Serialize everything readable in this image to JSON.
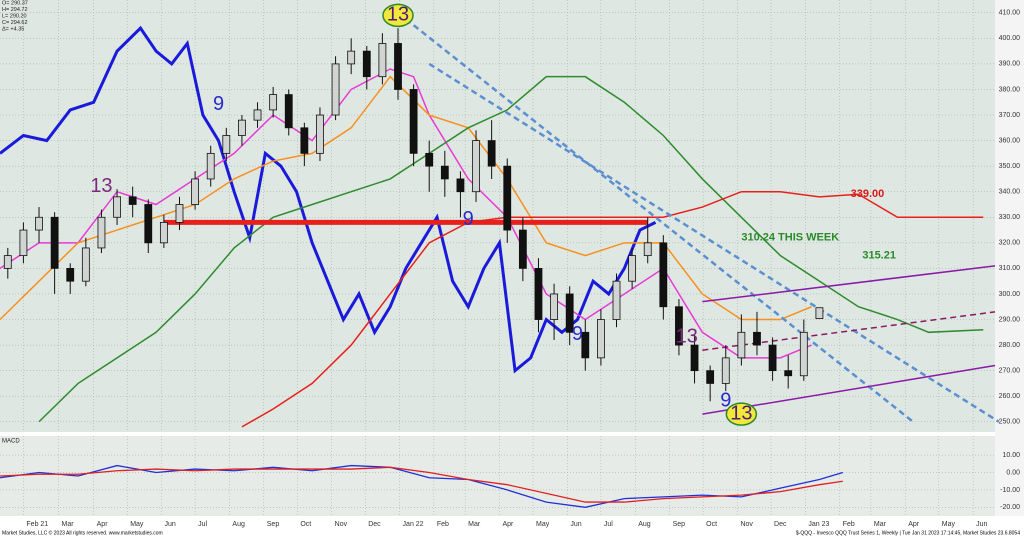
{
  "chart_data": [
    {
      "type": "candlestick",
      "info": [
        "O= 290.37",
        "H= 294.72",
        "L= 290.20",
        "C= 294.62",
        "Δ= +4.35"
      ],
      "x": [
        1,
        3,
        5,
        7,
        9,
        11,
        13,
        15,
        17,
        19,
        21,
        23,
        25,
        27,
        29,
        31,
        33,
        35,
        37,
        39,
        41,
        43,
        45,
        47,
        49,
        51,
        53,
        55,
        57,
        59,
        61,
        63,
        65,
        67,
        69,
        71,
        73,
        75,
        77,
        79,
        81,
        83,
        85,
        87,
        89,
        91,
        93,
        95,
        97,
        99,
        101,
        103,
        105
      ],
      "open": [
        310,
        315,
        325,
        330,
        310,
        305,
        318,
        330,
        338,
        335,
        320,
        328,
        335,
        345,
        355,
        362,
        368,
        372,
        378,
        365,
        355,
        370,
        390,
        395,
        385,
        398,
        380,
        355,
        350,
        345,
        340,
        360,
        350,
        325,
        310,
        290,
        300,
        285,
        275,
        290,
        305,
        315,
        320,
        295,
        280,
        270,
        265,
        275,
        285,
        280,
        270,
        268,
        290.37
      ],
      "high": [
        318,
        328,
        334,
        332,
        312,
        322,
        333,
        341,
        342,
        337,
        331,
        338,
        348,
        358,
        365,
        370,
        375,
        381,
        380,
        367,
        373,
        393,
        400,
        397,
        402,
        404,
        382,
        360,
        356,
        348,
        364,
        368,
        353,
        330,
        314,
        304,
        303,
        290,
        294,
        308,
        318,
        330,
        323,
        298,
        284,
        272,
        280,
        292,
        293,
        283,
        276,
        290,
        294.72
      ],
      "low": [
        306,
        312,
        320,
        300,
        300,
        303,
        316,
        327,
        330,
        316,
        318,
        325,
        333,
        342,
        352,
        358,
        365,
        369,
        362,
        350,
        352,
        368,
        386,
        380,
        382,
        376,
        350,
        340,
        338,
        330,
        336,
        345,
        320,
        305,
        285,
        282,
        280,
        270,
        272,
        287,
        302,
        312,
        290,
        276,
        265,
        258,
        262,
        272,
        276,
        266,
        263,
        266,
        290.2
      ],
      "close": [
        315,
        325,
        330,
        310,
        305,
        318,
        330,
        338,
        335,
        320,
        328,
        335,
        345,
        355,
        362,
        368,
        372,
        378,
        365,
        355,
        370,
        390,
        395,
        385,
        398,
        380,
        355,
        350,
        345,
        340,
        360,
        350,
        325,
        310,
        290,
        300,
        285,
        275,
        290,
        305,
        315,
        320,
        295,
        280,
        270,
        265,
        275,
        285,
        280,
        270,
        268,
        285,
        294.62
      ],
      "up_color": "#d0d4d2",
      "down_color": "#111111",
      "xlim": [
        0,
        127.5
      ],
      "xticks": [
        {
          "value": 3,
          "label": "Feb 21"
        },
        {
          "value": 7.5,
          "label": "Mar"
        },
        {
          "value": 12,
          "label": "Apr"
        },
        {
          "value": 16.3,
          "label": "May"
        },
        {
          "value": 20.7,
          "label": "Jun"
        },
        {
          "value": 25,
          "label": "Jul"
        },
        {
          "value": 29.4,
          "label": "Aug"
        },
        {
          "value": 33.8,
          "label": "Sep"
        },
        {
          "value": 38.1,
          "label": "Oct"
        },
        {
          "value": 42.5,
          "label": "Nov"
        },
        {
          "value": 46.8,
          "label": "Dec"
        },
        {
          "value": 51.2,
          "label": "Jan 22"
        },
        {
          "value": 55.6,
          "label": "Feb"
        },
        {
          "value": 59.6,
          "label": "Mar"
        },
        {
          "value": 64,
          "label": "Apr"
        },
        {
          "value": 68.3,
          "label": "May"
        },
        {
          "value": 72.7,
          "label": "Jun"
        },
        {
          "value": 77,
          "label": "Jul"
        },
        {
          "value": 81.4,
          "label": "Aug"
        },
        {
          "value": 85.8,
          "label": "Sep"
        },
        {
          "value": 90.1,
          "label": "Oct"
        },
        {
          "value": 94.5,
          "label": "Nov"
        },
        {
          "value": 98.8,
          "label": "Dec"
        },
        {
          "value": 103.2,
          "label": "Jan 23"
        },
        {
          "value": 107.6,
          "label": "Feb"
        },
        {
          "value": 111.6,
          "label": "Mar"
        },
        {
          "value": 116,
          "label": "Apr"
        },
        {
          "value": 120.3,
          "label": "May"
        },
        {
          "value": 124.7,
          "label": "Jun"
        }
      ],
      "ylim": [
        246,
        415
      ],
      "yticks": [
        {
          "value": 250,
          "label": "250.00"
        },
        {
          "value": 260,
          "label": "260.00"
        },
        {
          "value": 270,
          "label": "270.00"
        },
        {
          "value": 280,
          "label": "280.00"
        },
        {
          "value": 290,
          "label": "290.00"
        },
        {
          "value": 300,
          "label": "300.00"
        },
        {
          "value": 310,
          "label": "310.00"
        },
        {
          "value": 320,
          "label": "320.00"
        },
        {
          "value": 330,
          "label": "330.00"
        },
        {
          "value": 340,
          "label": "340.00"
        },
        {
          "value": 350,
          "label": "350.00"
        },
        {
          "value": 360,
          "label": "360.00"
        },
        {
          "value": 370,
          "label": "370.00"
        },
        {
          "value": 380,
          "label": "380.00"
        },
        {
          "value": 390,
          "label": "390.00"
        },
        {
          "value": 400,
          "label": "400.00"
        },
        {
          "value": 410,
          "label": "410.00"
        }
      ],
      "grid": true,
      "lines": [
        {
          "color": "#1a1adb",
          "width": 3,
          "x": [
            0,
            3,
            6,
            9,
            12,
            15,
            18,
            20,
            22,
            24,
            26,
            28,
            30,
            32,
            34,
            36,
            38,
            40,
            42,
            44,
            46,
            48,
            50,
            52,
            54,
            56,
            58,
            60,
            62,
            64,
            66,
            68,
            70,
            72,
            74,
            76,
            78,
            80,
            82,
            84
          ],
          "values": [
            355,
            362,
            360,
            372,
            375,
            395,
            404,
            395,
            390,
            398,
            370,
            360,
            340,
            322,
            355,
            350,
            340,
            320,
            305,
            290,
            300,
            285,
            295,
            310,
            320,
            330,
            305,
            295,
            310,
            320,
            270,
            275,
            290,
            285,
            290,
            305,
            300,
            310,
            325,
            328
          ]
        },
        {
          "color": "#e83ad6",
          "width": 1.5,
          "x": [
            0,
            5,
            10,
            15,
            20,
            25,
            30,
            35,
            40,
            45,
            50,
            53,
            55,
            60,
            65,
            70,
            75,
            80,
            85,
            90,
            95,
            100,
            104
          ],
          "values": [
            310,
            320,
            320,
            340,
            335,
            345,
            355,
            370,
            360,
            380,
            388,
            385,
            370,
            345,
            330,
            300,
            290,
            300,
            310,
            285,
            275,
            275,
            280
          ]
        },
        {
          "color": "#f7901e",
          "width": 1.5,
          "x": [
            0,
            5,
            10,
            15,
            20,
            25,
            30,
            35,
            40,
            45,
            50,
            55,
            60,
            65,
            70,
            75,
            80,
            85,
            90,
            95,
            100,
            104
          ],
          "values": [
            290,
            305,
            320,
            325,
            330,
            335,
            345,
            352,
            355,
            365,
            385,
            370,
            365,
            345,
            320,
            315,
            320,
            320,
            300,
            290,
            290,
            295
          ]
        },
        {
          "color": "#2e8b2e",
          "width": 1.5,
          "x": [
            5,
            10,
            15,
            20,
            25,
            30,
            35,
            40,
            45,
            50,
            55,
            60,
            65,
            70,
            75,
            80,
            85,
            90,
            95,
            100,
            105,
            110,
            115,
            119,
            126
          ],
          "values": [
            250,
            265,
            275,
            285,
            300,
            318,
            330,
            335,
            340,
            345,
            355,
            365,
            372,
            385,
            385,
            375,
            362,
            345,
            330,
            315,
            305,
            295,
            290,
            285,
            286
          ]
        },
        {
          "color": "#e8201c",
          "width": 1.5,
          "x": [
            31,
            35,
            40,
            45,
            50,
            55,
            60,
            65,
            70,
            75,
            80,
            85,
            90,
            95,
            100,
            105,
            110,
            115,
            119,
            126
          ],
          "values": [
            248,
            255,
            265,
            280,
            300,
            320,
            328,
            330,
            330,
            330,
            330,
            330,
            334,
            340,
            340,
            338,
            339,
            330,
            330,
            330
          ]
        },
        {
          "color": "#e8201c",
          "width": 5,
          "x": [
            21,
            83
          ],
          "values": [
            328,
            328
          ]
        },
        {
          "color": "#5b8fd0",
          "width": 2.5,
          "dash": true,
          "x": [
            51,
            117
          ],
          "values": [
            410,
            250
          ]
        },
        {
          "color": "#5b8fd0",
          "width": 2.5,
          "dash": true,
          "x": [
            55,
            128
          ],
          "values": [
            390,
            250
          ]
        },
        {
          "color": "#8a1aa8",
          "width": 1.5,
          "x": [
            90,
            127.5
          ],
          "values": [
            297,
            311
          ]
        },
        {
          "color": "#8a1aa8",
          "width": 1.5,
          "x": [
            90,
            127.5
          ],
          "values": [
            253,
            272
          ]
        },
        {
          "color": "#8a1a60",
          "width": 1.5,
          "dash": true,
          "x": [
            90,
            127.5
          ],
          "values": [
            278,
            293
          ]
        }
      ],
      "annotations": [
        {
          "text": "13",
          "x": 51,
          "y": 409,
          "color": "#4b1d7a",
          "badge": "#f3e83a"
        },
        {
          "text": "13",
          "x": 95,
          "y": 253,
          "color": "#4b1d7a",
          "badge": "#f3e83a"
        },
        {
          "text": "13",
          "x": 13,
          "y": 342,
          "color": "#7a2a7a"
        },
        {
          "text": "13",
          "x": 88,
          "y": 283,
          "color": "#7a2a7a"
        },
        {
          "text": "9",
          "x": 28,
          "y": 374,
          "color": "#2a2ac8"
        },
        {
          "text": "9",
          "x": 60,
          "y": 329,
          "color": "#2a2ac8"
        },
        {
          "text": "9",
          "x": 74,
          "y": 284,
          "color": "#2a2ac8"
        },
        {
          "text": "9",
          "x": 93,
          "y": 258,
          "color": "#2a2ac8"
        },
        {
          "text": "339.00",
          "x": 109,
          "y": 339,
          "color": "#d81818"
        },
        {
          "text": "310.24 THIS WEEK",
          "x": 95,
          "y": 322,
          "color": "#2a8a2a"
        },
        {
          "text": "315.21",
          "x": 110.5,
          "y": 315,
          "color": "#2a8a2a"
        }
      ]
    },
    {
      "type": "line",
      "title": "MACD",
      "xlim": [
        0,
        127.5
      ],
      "ylim": [
        -25,
        21
      ],
      "yticks": [
        {
          "value": 10,
          "label": "10.00"
        },
        {
          "value": 0,
          "label": "0.00"
        },
        {
          "value": -10,
          "label": "-10.00"
        },
        {
          "value": -20,
          "label": "-20.00"
        }
      ],
      "series": [
        {
          "color": "#2030d8",
          "x": [
            0,
            5,
            10,
            15,
            20,
            25,
            30,
            35,
            40,
            45,
            50,
            55,
            60,
            65,
            70,
            75,
            80,
            85,
            90,
            95,
            100,
            105,
            108
          ],
          "values": [
            -3,
            0,
            -2,
            4,
            0,
            2,
            1,
            3,
            1,
            4,
            3,
            -3,
            -4,
            -10,
            -17,
            -20,
            -15,
            -14,
            -13,
            -14,
            -9,
            -4,
            0
          ]
        },
        {
          "color": "#e02020",
          "x": [
            0,
            5,
            10,
            15,
            20,
            25,
            30,
            35,
            40,
            45,
            50,
            55,
            60,
            65,
            70,
            75,
            80,
            85,
            90,
            95,
            100,
            105,
            108
          ],
          "values": [
            -2,
            -1,
            -1,
            1,
            2,
            1,
            2,
            2,
            2,
            2,
            3,
            0,
            -4,
            -7,
            -12,
            -17,
            -17,
            -15,
            -14,
            -13,
            -11,
            -7,
            -5
          ]
        }
      ]
    }
  ],
  "footer_left": "Market Studies, LLC © 2023 All rights reserved. www.marketstudies.com",
  "footer_right": "$-QQQ - Invesco QQQ Trust Series 1, Weekly | Tue Jan 31 2023 17:14:45, Market Studies 23.6.8054"
}
